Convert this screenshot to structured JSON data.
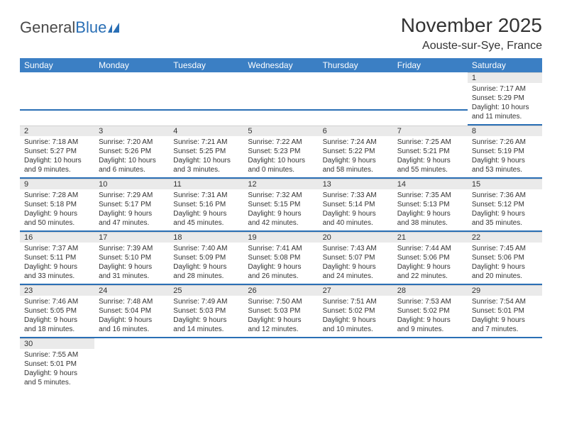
{
  "logo": {
    "text1": "General",
    "text2": "Blue"
  },
  "header": {
    "month": "November 2025",
    "location": "Aouste-sur-Sye, France"
  },
  "colors": {
    "header_bg": "#3b7fc4",
    "header_text": "#ffffff",
    "daynum_bg": "#eaeaea",
    "divider": "#2a6fb5",
    "text": "#333333"
  },
  "weekdays": [
    "Sunday",
    "Monday",
    "Tuesday",
    "Wednesday",
    "Thursday",
    "Friday",
    "Saturday"
  ],
  "weeks": [
    [
      {
        "empty": true
      },
      {
        "empty": true
      },
      {
        "empty": true
      },
      {
        "empty": true
      },
      {
        "empty": true
      },
      {
        "empty": true
      },
      {
        "num": "1",
        "sunrise": "Sunrise: 7:17 AM",
        "sunset": "Sunset: 5:29 PM",
        "daylight": "Daylight: 10 hours and 11 minutes."
      }
    ],
    [
      {
        "num": "2",
        "sunrise": "Sunrise: 7:18 AM",
        "sunset": "Sunset: 5:27 PM",
        "daylight": "Daylight: 10 hours and 9 minutes."
      },
      {
        "num": "3",
        "sunrise": "Sunrise: 7:20 AM",
        "sunset": "Sunset: 5:26 PM",
        "daylight": "Daylight: 10 hours and 6 minutes."
      },
      {
        "num": "4",
        "sunrise": "Sunrise: 7:21 AM",
        "sunset": "Sunset: 5:25 PM",
        "daylight": "Daylight: 10 hours and 3 minutes."
      },
      {
        "num": "5",
        "sunrise": "Sunrise: 7:22 AM",
        "sunset": "Sunset: 5:23 PM",
        "daylight": "Daylight: 10 hours and 0 minutes."
      },
      {
        "num": "6",
        "sunrise": "Sunrise: 7:24 AM",
        "sunset": "Sunset: 5:22 PM",
        "daylight": "Daylight: 9 hours and 58 minutes."
      },
      {
        "num": "7",
        "sunrise": "Sunrise: 7:25 AM",
        "sunset": "Sunset: 5:21 PM",
        "daylight": "Daylight: 9 hours and 55 minutes."
      },
      {
        "num": "8",
        "sunrise": "Sunrise: 7:26 AM",
        "sunset": "Sunset: 5:19 PM",
        "daylight": "Daylight: 9 hours and 53 minutes."
      }
    ],
    [
      {
        "num": "9",
        "sunrise": "Sunrise: 7:28 AM",
        "sunset": "Sunset: 5:18 PM",
        "daylight": "Daylight: 9 hours and 50 minutes."
      },
      {
        "num": "10",
        "sunrise": "Sunrise: 7:29 AM",
        "sunset": "Sunset: 5:17 PM",
        "daylight": "Daylight: 9 hours and 47 minutes."
      },
      {
        "num": "11",
        "sunrise": "Sunrise: 7:31 AM",
        "sunset": "Sunset: 5:16 PM",
        "daylight": "Daylight: 9 hours and 45 minutes."
      },
      {
        "num": "12",
        "sunrise": "Sunrise: 7:32 AM",
        "sunset": "Sunset: 5:15 PM",
        "daylight": "Daylight: 9 hours and 42 minutes."
      },
      {
        "num": "13",
        "sunrise": "Sunrise: 7:33 AM",
        "sunset": "Sunset: 5:14 PM",
        "daylight": "Daylight: 9 hours and 40 minutes."
      },
      {
        "num": "14",
        "sunrise": "Sunrise: 7:35 AM",
        "sunset": "Sunset: 5:13 PM",
        "daylight": "Daylight: 9 hours and 38 minutes."
      },
      {
        "num": "15",
        "sunrise": "Sunrise: 7:36 AM",
        "sunset": "Sunset: 5:12 PM",
        "daylight": "Daylight: 9 hours and 35 minutes."
      }
    ],
    [
      {
        "num": "16",
        "sunrise": "Sunrise: 7:37 AM",
        "sunset": "Sunset: 5:11 PM",
        "daylight": "Daylight: 9 hours and 33 minutes."
      },
      {
        "num": "17",
        "sunrise": "Sunrise: 7:39 AM",
        "sunset": "Sunset: 5:10 PM",
        "daylight": "Daylight: 9 hours and 31 minutes."
      },
      {
        "num": "18",
        "sunrise": "Sunrise: 7:40 AM",
        "sunset": "Sunset: 5:09 PM",
        "daylight": "Daylight: 9 hours and 28 minutes."
      },
      {
        "num": "19",
        "sunrise": "Sunrise: 7:41 AM",
        "sunset": "Sunset: 5:08 PM",
        "daylight": "Daylight: 9 hours and 26 minutes."
      },
      {
        "num": "20",
        "sunrise": "Sunrise: 7:43 AM",
        "sunset": "Sunset: 5:07 PM",
        "daylight": "Daylight: 9 hours and 24 minutes."
      },
      {
        "num": "21",
        "sunrise": "Sunrise: 7:44 AM",
        "sunset": "Sunset: 5:06 PM",
        "daylight": "Daylight: 9 hours and 22 minutes."
      },
      {
        "num": "22",
        "sunrise": "Sunrise: 7:45 AM",
        "sunset": "Sunset: 5:06 PM",
        "daylight": "Daylight: 9 hours and 20 minutes."
      }
    ],
    [
      {
        "num": "23",
        "sunrise": "Sunrise: 7:46 AM",
        "sunset": "Sunset: 5:05 PM",
        "daylight": "Daylight: 9 hours and 18 minutes."
      },
      {
        "num": "24",
        "sunrise": "Sunrise: 7:48 AM",
        "sunset": "Sunset: 5:04 PM",
        "daylight": "Daylight: 9 hours and 16 minutes."
      },
      {
        "num": "25",
        "sunrise": "Sunrise: 7:49 AM",
        "sunset": "Sunset: 5:03 PM",
        "daylight": "Daylight: 9 hours and 14 minutes."
      },
      {
        "num": "26",
        "sunrise": "Sunrise: 7:50 AM",
        "sunset": "Sunset: 5:03 PM",
        "daylight": "Daylight: 9 hours and 12 minutes."
      },
      {
        "num": "27",
        "sunrise": "Sunrise: 7:51 AM",
        "sunset": "Sunset: 5:02 PM",
        "daylight": "Daylight: 9 hours and 10 minutes."
      },
      {
        "num": "28",
        "sunrise": "Sunrise: 7:53 AM",
        "sunset": "Sunset: 5:02 PM",
        "daylight": "Daylight: 9 hours and 9 minutes."
      },
      {
        "num": "29",
        "sunrise": "Sunrise: 7:54 AM",
        "sunset": "Sunset: 5:01 PM",
        "daylight": "Daylight: 9 hours and 7 minutes."
      }
    ],
    [
      {
        "num": "30",
        "sunrise": "Sunrise: 7:55 AM",
        "sunset": "Sunset: 5:01 PM",
        "daylight": "Daylight: 9 hours and 5 minutes."
      },
      {
        "empty_after": true
      },
      {
        "empty_after": true
      },
      {
        "empty_after": true
      },
      {
        "empty_after": true
      },
      {
        "empty_after": true
      },
      {
        "empty_after": true
      }
    ]
  ]
}
